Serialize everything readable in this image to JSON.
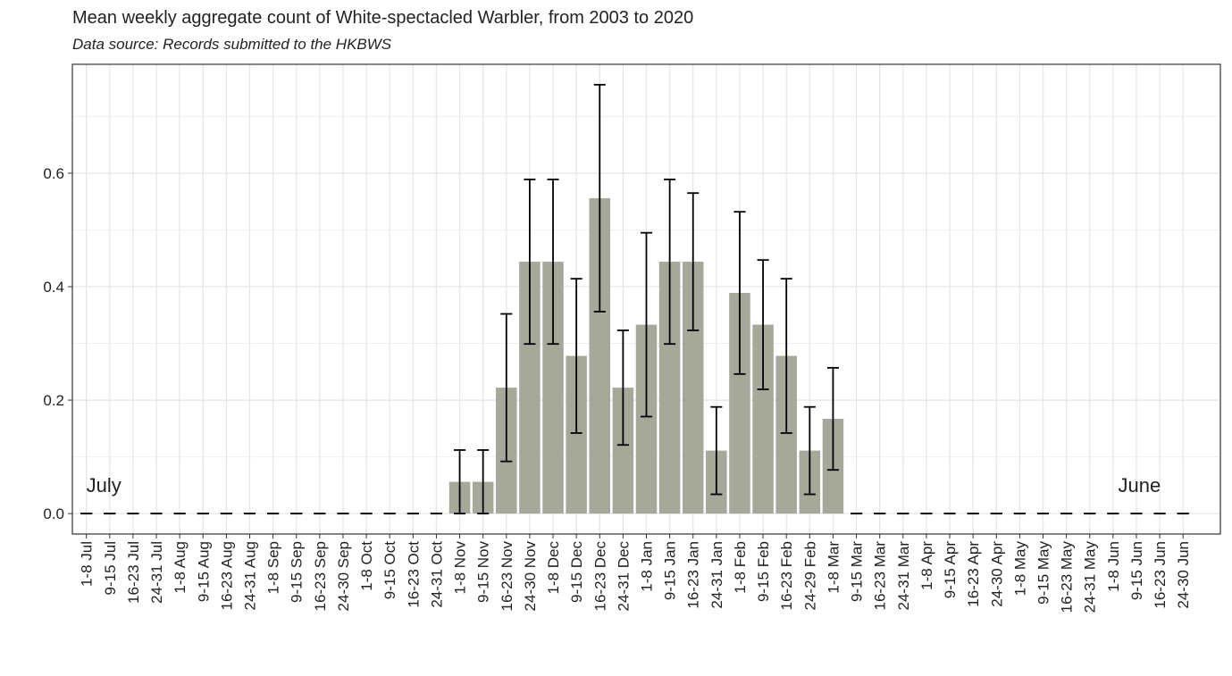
{
  "chart_data": {
    "type": "bar",
    "title": "Mean weekly aggregate count of White-spectacled Warbler, from 2003 to 2020",
    "subtitle": "Data source: Records submitted to the HKBWS",
    "annotations": [
      "July",
      "June"
    ],
    "categories": [
      "1-8 Jul",
      "9-15 Jul",
      "16-23 Jul",
      "24-31 Jul",
      "1-8 Aug",
      "9-15 Aug",
      "16-23 Aug",
      "24-31 Aug",
      "1-8 Sep",
      "9-15 Sep",
      "16-23 Sep",
      "24-30 Sep",
      "1-8 Oct",
      "9-15 Oct",
      "16-23 Oct",
      "24-31 Oct",
      "1-8 Nov",
      "9-15 Nov",
      "16-23 Nov",
      "24-30 Nov",
      "1-8 Dec",
      "9-15 Dec",
      "16-23 Dec",
      "24-31 Dec",
      "1-8 Jan",
      "9-15 Jan",
      "16-23 Jan",
      "24-31 Jan",
      "1-8 Feb",
      "9-15 Feb",
      "16-23 Feb",
      "24-29 Feb",
      "1-8 Mar",
      "9-15 Mar",
      "16-23 Mar",
      "24-31 Mar",
      "1-8 Apr",
      "9-15 Apr",
      "16-23 Apr",
      "24-30 Apr",
      "1-8 May",
      "9-15 May",
      "16-23 May",
      "24-31 May",
      "1-8 Jun",
      "9-15 Jun",
      "16-23 Jun",
      "24-30 Jun"
    ],
    "values": [
      0,
      0,
      0,
      0,
      0,
      0,
      0,
      0,
      0,
      0,
      0,
      0,
      0,
      0,
      0,
      0,
      0.056,
      0.056,
      0.222,
      0.444,
      0.444,
      0.278,
      0.556,
      0.222,
      0.333,
      0.444,
      0.444,
      0.111,
      0.389,
      0.333,
      0.278,
      0.111,
      0.167,
      0,
      0,
      0,
      0,
      0,
      0,
      0,
      0,
      0,
      0,
      0,
      0,
      0,
      0,
      0
    ],
    "errors": [
      0,
      0,
      0,
      0,
      0,
      0,
      0,
      0,
      0,
      0,
      0,
      0,
      0,
      0,
      0,
      0,
      0.056,
      0.056,
      0.13,
      0.145,
      0.145,
      0.136,
      0.2,
      0.101,
      0.162,
      0.145,
      0.121,
      0.077,
      0.143,
      0.114,
      0.136,
      0.077,
      0.09,
      0,
      0,
      0,
      0,
      0,
      0,
      0,
      0,
      0,
      0,
      0,
      0,
      0,
      0,
      0
    ],
    "color": "#a6a899",
    "ylim": [
      -0.036,
      0.792
    ],
    "yticks": [
      {
        "value": 0,
        "label": "0.0"
      },
      0.2,
      0.4,
      0.6
    ],
    "y_minor_ticks": [
      0.1,
      0.3,
      0.5,
      0.7
    ],
    "grid": true
  }
}
